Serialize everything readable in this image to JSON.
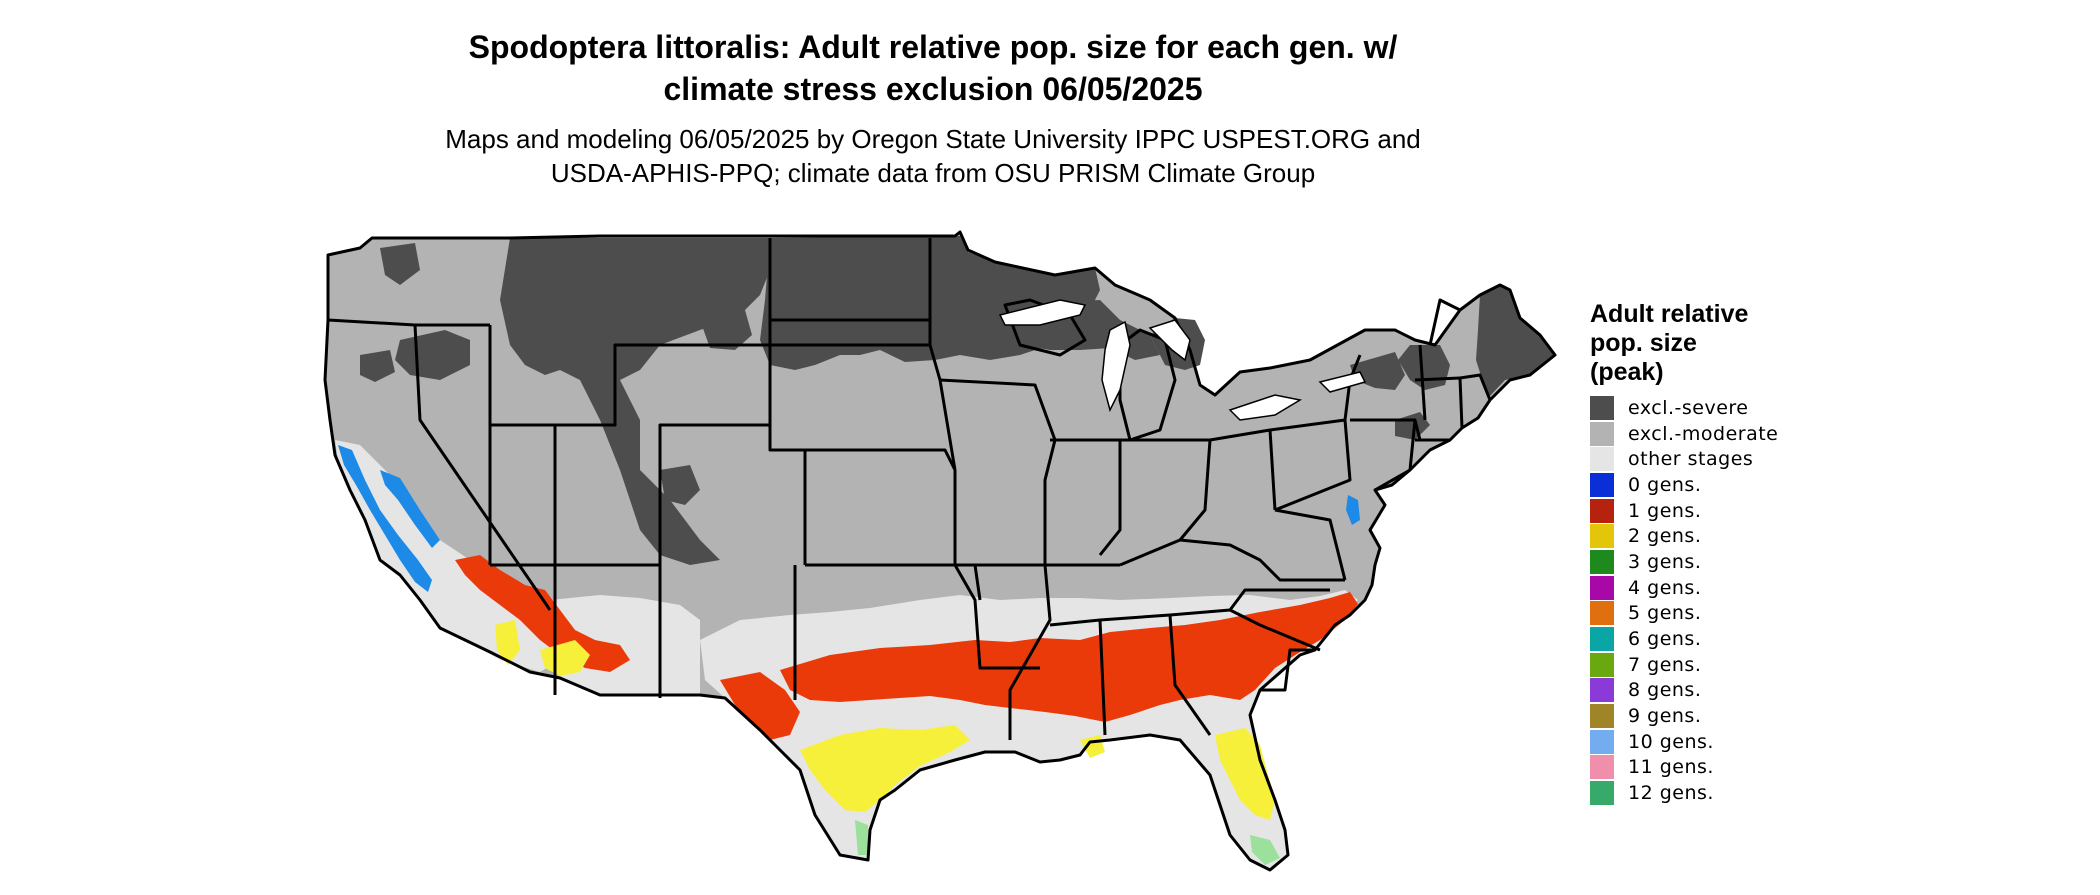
{
  "title": {
    "line1": "Spodoptera littoralis: Adult relative pop. size for each gen. w/",
    "line2": "climate stress exclusion 06/05/2025"
  },
  "subtitle": {
    "line1": "Maps and modeling 06/05/2025 by Oregon State University IPPC USPEST.ORG and",
    "line2": "USDA-APHIS-PPQ; climate data from OSU PRISM Climate Group"
  },
  "legend": {
    "title_lines": [
      "Adult relative",
      "pop. size",
      "(peak)"
    ],
    "items": [
      {
        "label": "excl.-severe",
        "color": "#4d4d4d"
      },
      {
        "label": "excl.-moderate",
        "color": "#b3b3b3"
      },
      {
        "label": "other stages",
        "color": "#e5e5e5"
      },
      {
        "label": "0 gens.",
        "color": "#0a2fd6"
      },
      {
        "label": "1 gens.",
        "color": "#b5230f"
      },
      {
        "label": "2 gens.",
        "color": "#e3c50a"
      },
      {
        "label": "3 gens.",
        "color": "#1e8a1e"
      },
      {
        "label": "4 gens.",
        "color": "#a808a8"
      },
      {
        "label": "5 gens.",
        "color": "#e0700f"
      },
      {
        "label": "6 gens.",
        "color": "#0aa5a5"
      },
      {
        "label": "7 gens.",
        "color": "#6aa80f"
      },
      {
        "label": "8 gens.",
        "color": "#8a3ad6"
      },
      {
        "label": "9 gens.",
        "color": "#a08528"
      },
      {
        "label": "10 gens.",
        "color": "#73acef"
      },
      {
        "label": "11 gens.",
        "color": "#f08fac"
      },
      {
        "label": "12 gens.",
        "color": "#37aa6a"
      }
    ]
  },
  "map": {
    "colors": {
      "severe": "#4d4d4d",
      "moderate": "#b3b3b3",
      "other": "#e5e5e5",
      "gen1": "#ea3a0a",
      "gen2": "#f7f03a",
      "gen0": "#1c8ae6",
      "gen12": "#9be09b",
      "border": "#000000"
    }
  }
}
